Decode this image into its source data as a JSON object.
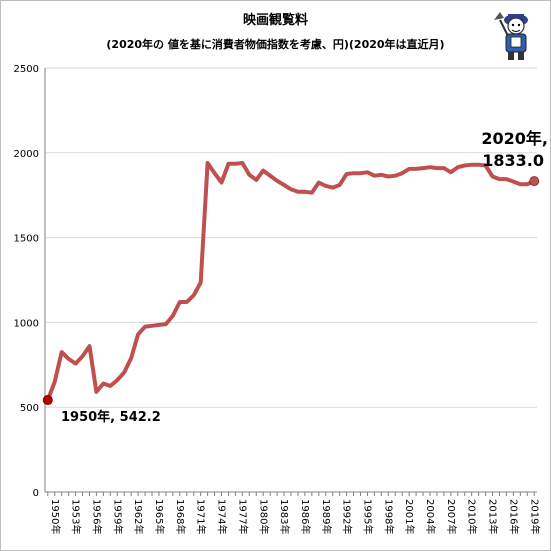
{
  "chart_data": {
    "type": "line",
    "title": "映画観覧料",
    "subtitle": "(2020年の 値を基に消費者物価指数を考慮、円)(2020年は直近月)",
    "ylim": [
      0,
      2500
    ],
    "yticks": [
      0,
      500,
      1000,
      1500,
      2000,
      2500
    ],
    "xtick_labels": [
      "1950年",
      "1953年",
      "1956年",
      "1959年",
      "1962年",
      "1965年",
      "1968年",
      "1971年",
      "1974年",
      "1977年",
      "1980年",
      "1983年",
      "1986年",
      "1989年",
      "1992年",
      "1995年",
      "1998年",
      "2001年",
      "2004年",
      "2007年",
      "2010年",
      "2013年",
      "2016年",
      "2019年"
    ],
    "series_color": "#c0504d",
    "x": [
      1950,
      1951,
      1952,
      1953,
      1954,
      1955,
      1956,
      1957,
      1958,
      1959,
      1960,
      1961,
      1962,
      1963,
      1964,
      1965,
      1966,
      1967,
      1968,
      1969,
      1970,
      1971,
      1972,
      1973,
      1974,
      1975,
      1976,
      1977,
      1978,
      1979,
      1980,
      1981,
      1982,
      1983,
      1984,
      1985,
      1986,
      1987,
      1988,
      1989,
      1990,
      1991,
      1992,
      1993,
      1994,
      1995,
      1996,
      1997,
      1998,
      1999,
      2000,
      2001,
      2002,
      2003,
      2004,
      2005,
      2006,
      2007,
      2008,
      2009,
      2010,
      2011,
      2012,
      2013,
      2014,
      2015,
      2016,
      2017,
      2018,
      2019,
      2020
    ],
    "values": [
      542.2,
      650,
      825,
      785,
      757,
      800,
      860,
      590,
      640,
      625,
      660,
      705,
      790,
      930,
      975,
      980,
      985,
      990,
      1040,
      1120,
      1120,
      1160,
      1235,
      1940,
      1880,
      1825,
      1935,
      1935,
      1940,
      1870,
      1840,
      1895,
      1865,
      1835,
      1810,
      1785,
      1770,
      1770,
      1765,
      1825,
      1805,
      1795,
      1810,
      1875,
      1880,
      1880,
      1885,
      1865,
      1870,
      1860,
      1865,
      1880,
      1905,
      1905,
      1910,
      1915,
      1910,
      1910,
      1885,
      1915,
      1925,
      1930,
      1930,
      1925,
      1860,
      1845,
      1845,
      1830,
      1815,
      1815,
      1833.0
    ],
    "annotations": [
      {
        "lines": [
          "1950年, 542.2"
        ]
      },
      {
        "lines": [
          "2020年,",
          "1833.0"
        ]
      }
    ]
  }
}
